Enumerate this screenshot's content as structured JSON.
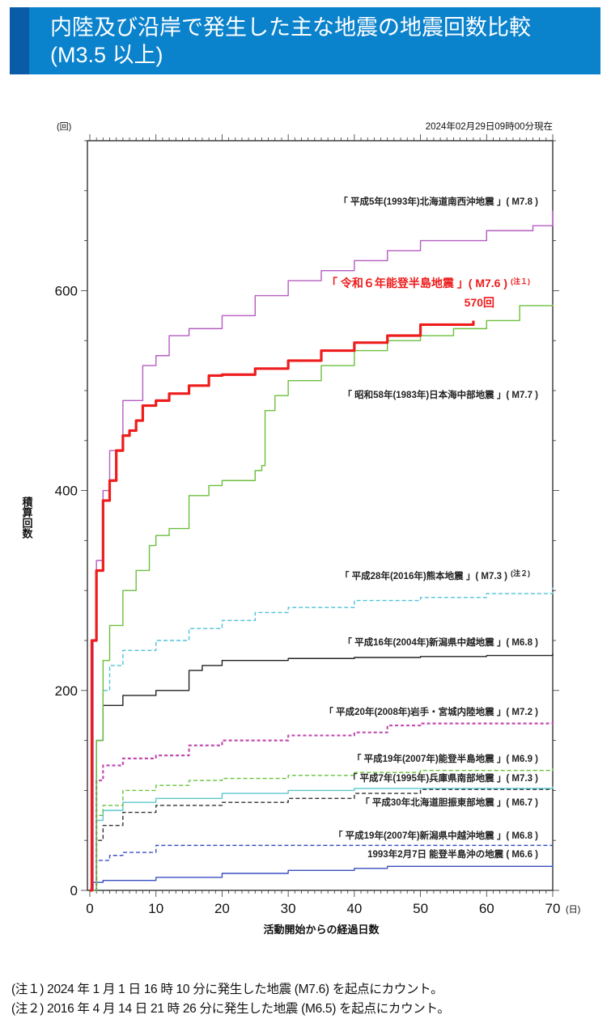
{
  "header": {
    "title_line1": "内陸及び沿岸で発生した主な地震の地震回数比較",
    "title_line2": "(M3.5 以上)",
    "accent_color": "#0b82cc",
    "stripe_color": "#0a5ba8"
  },
  "chart_data": {
    "type": "line",
    "title": "内陸及び沿岸で発生した主な地震の地震回数比較(M3.5 以上)",
    "timestamp": "2024年02月29日09時00分現在",
    "xlabel": "活動開始からの経過日数",
    "x_unit": "(日)",
    "ylabel": "積算回数",
    "y_unit": "(回)",
    "xlim": [
      0,
      70
    ],
    "ylim": [
      0,
      750
    ],
    "xticks": [
      "0",
      "10",
      "20",
      "30",
      "40",
      "50",
      "60",
      "70"
    ],
    "yticks": [
      "0",
      "200",
      "400",
      "600"
    ],
    "grid": false,
    "series": [
      {
        "name": "「平成5年(1993年)北海道南西沖地震」(M7.8)",
        "label": "「 平成5年(1993年)北海道南西沖地震 」( M7.8 )",
        "color": "#b55cc0",
        "style": "solid",
        "x": [
          0,
          0.5,
          1,
          2,
          3,
          5,
          8,
          10,
          12,
          15,
          20,
          25,
          30,
          35,
          40,
          45,
          50,
          60,
          67,
          70
        ],
        "y": [
          0,
          250,
          330,
          400,
          440,
          490,
          525,
          535,
          555,
          562,
          575,
          595,
          610,
          620,
          630,
          640,
          650,
          660,
          665,
          680
        ]
      },
      {
        "name": "「令和6年能登半島地震」(M7.6)",
        "label": "「 令和６年能登半島地震 」( M7.6 )",
        "note": "(注１)",
        "count_label": "570回",
        "color": "#ee1c1c",
        "style": "bold",
        "x": [
          0,
          0.3,
          1,
          2,
          3,
          4,
          5,
          6,
          7,
          8,
          10,
          12,
          15,
          18,
          20,
          25,
          30,
          35,
          40,
          45,
          50,
          58
        ],
        "y": [
          0,
          250,
          320,
          390,
          410,
          440,
          455,
          460,
          470,
          485,
          490,
          497,
          505,
          515,
          516,
          522,
          530,
          540,
          548,
          555,
          566,
          570
        ]
      },
      {
        "name": "「昭和58年(1983年)日本海中部地震」(M7.7)",
        "label": "「 昭和58年(1983年)日本海中部地震 」( M7.7 )",
        "color": "#6cbf3c",
        "style": "solid",
        "x": [
          0,
          1,
          2,
          3,
          5,
          7,
          9,
          10,
          12,
          15,
          18,
          20,
          25,
          26,
          26.5,
          28,
          30,
          35,
          40,
          45,
          50,
          55,
          60,
          65,
          70
        ],
        "y": [
          0,
          150,
          230,
          265,
          300,
          320,
          345,
          355,
          362,
          395,
          405,
          410,
          420,
          425,
          480,
          495,
          510,
          525,
          540,
          550,
          555,
          562,
          570,
          585,
          586
        ]
      },
      {
        "name": "「平成28年(2016年)熊本地震」(M7.3)",
        "label": "「 平成28年(2016年)熊本地震 」( M7.3 )",
        "note": "(注２)",
        "color": "#4fc3d8",
        "style": "dashed",
        "x": [
          0,
          1,
          2,
          3,
          5,
          10,
          15,
          20,
          25,
          30,
          40,
          50,
          60,
          70
        ],
        "y": [
          0,
          150,
          200,
          225,
          240,
          250,
          262,
          270,
          278,
          283,
          290,
          293,
          297,
          303
        ]
      },
      {
        "name": "「平成16年(2004年)新潟県中越地震」(M6.8)",
        "label": "「 平成16年(2004年)新潟県中越地震 」( M6.8 )",
        "color": "#222222",
        "style": "solid",
        "x": [
          0,
          1,
          2,
          5,
          10,
          15,
          17,
          20,
          30,
          40,
          50,
          60,
          70
        ],
        "y": [
          0,
          150,
          185,
          195,
          200,
          220,
          225,
          230,
          232,
          233,
          234,
          235,
          237
        ]
      },
      {
        "name": "「平成20年(2008年)岩手・宮城内陸地震」(M7.2)",
        "label": "「 平成20年(2008年)岩手・宮城内陸地震 」( M7.2 )",
        "color": "#c04cb0",
        "style": "dotted",
        "x": [
          0,
          1,
          2,
          5,
          10,
          15,
          20,
          30,
          40,
          45,
          50,
          70
        ],
        "y": [
          0,
          110,
          125,
          132,
          135,
          145,
          150,
          155,
          158,
          165,
          167,
          169
        ]
      },
      {
        "name": "「平成19年(2007年)能登半島地震」(M6.9)",
        "label": "「 平成19年(2007年)能登半島地震 」( M6.9 )",
        "color": "#66c23a",
        "style": "dashed",
        "x": [
          0,
          1,
          2,
          5,
          10,
          15,
          20,
          30,
          40,
          50,
          70
        ],
        "y": [
          0,
          75,
          85,
          100,
          105,
          110,
          112,
          115,
          118,
          120,
          122
        ]
      },
      {
        "name": "「平成7年(1995年)兵庫県南部地震」(M7.3)",
        "label": "「 平成7年(1995年)兵庫県南部地震 」( M7.3 )",
        "color": "#5cc7cf",
        "style": "solid",
        "x": [
          0,
          1,
          2,
          5,
          10,
          20,
          30,
          40,
          70
        ],
        "y": [
          0,
          70,
          80,
          88,
          92,
          97,
          100,
          102,
          104
        ]
      },
      {
        "name": "「平成30年北海道胆振東部地震」(M6.7)",
        "label": "「 平成30年北海道胆振東部地震 」( M6.7 )",
        "color": "#333333",
        "style": "dashed",
        "x": [
          0,
          1,
          2,
          5,
          10,
          20,
          30,
          40,
          50,
          70
        ],
        "y": [
          0,
          50,
          65,
          78,
          85,
          88,
          92,
          97,
          101,
          102
        ]
      },
      {
        "name": "「平成19年(2007年)新潟県中越沖地震」(M6.8)",
        "label": "「 平成19年(2007年)新潟県中越沖地震 」( M6.8 )",
        "color": "#3a4fc0",
        "style": "dashed",
        "x": [
          0,
          1,
          3,
          5,
          10,
          70
        ],
        "y": [
          0,
          30,
          35,
          38,
          45,
          45
        ]
      },
      {
        "name": "1993年2月7日 能登半島沖の地震(M6.6)",
        "label": "1993年2月7日 能登半島沖の地震 ( M6.6 )",
        "color": "#3a4fc0",
        "style": "solid",
        "x": [
          0,
          0.5,
          2,
          10,
          20,
          30,
          40,
          45,
          70
        ],
        "y": [
          0,
          8,
          10,
          13,
          17,
          20,
          22,
          24,
          27
        ]
      }
    ]
  },
  "notes": [
    "(注１) 2024 年 1 月 1 日 16 時 10 分に発生した地震 (M7.6) を起点にカウント。",
    "(注２) 2016 年 4 月 14 日 21 時 26 分に発生した地震 (M6.5) を起点にカウント。"
  ]
}
